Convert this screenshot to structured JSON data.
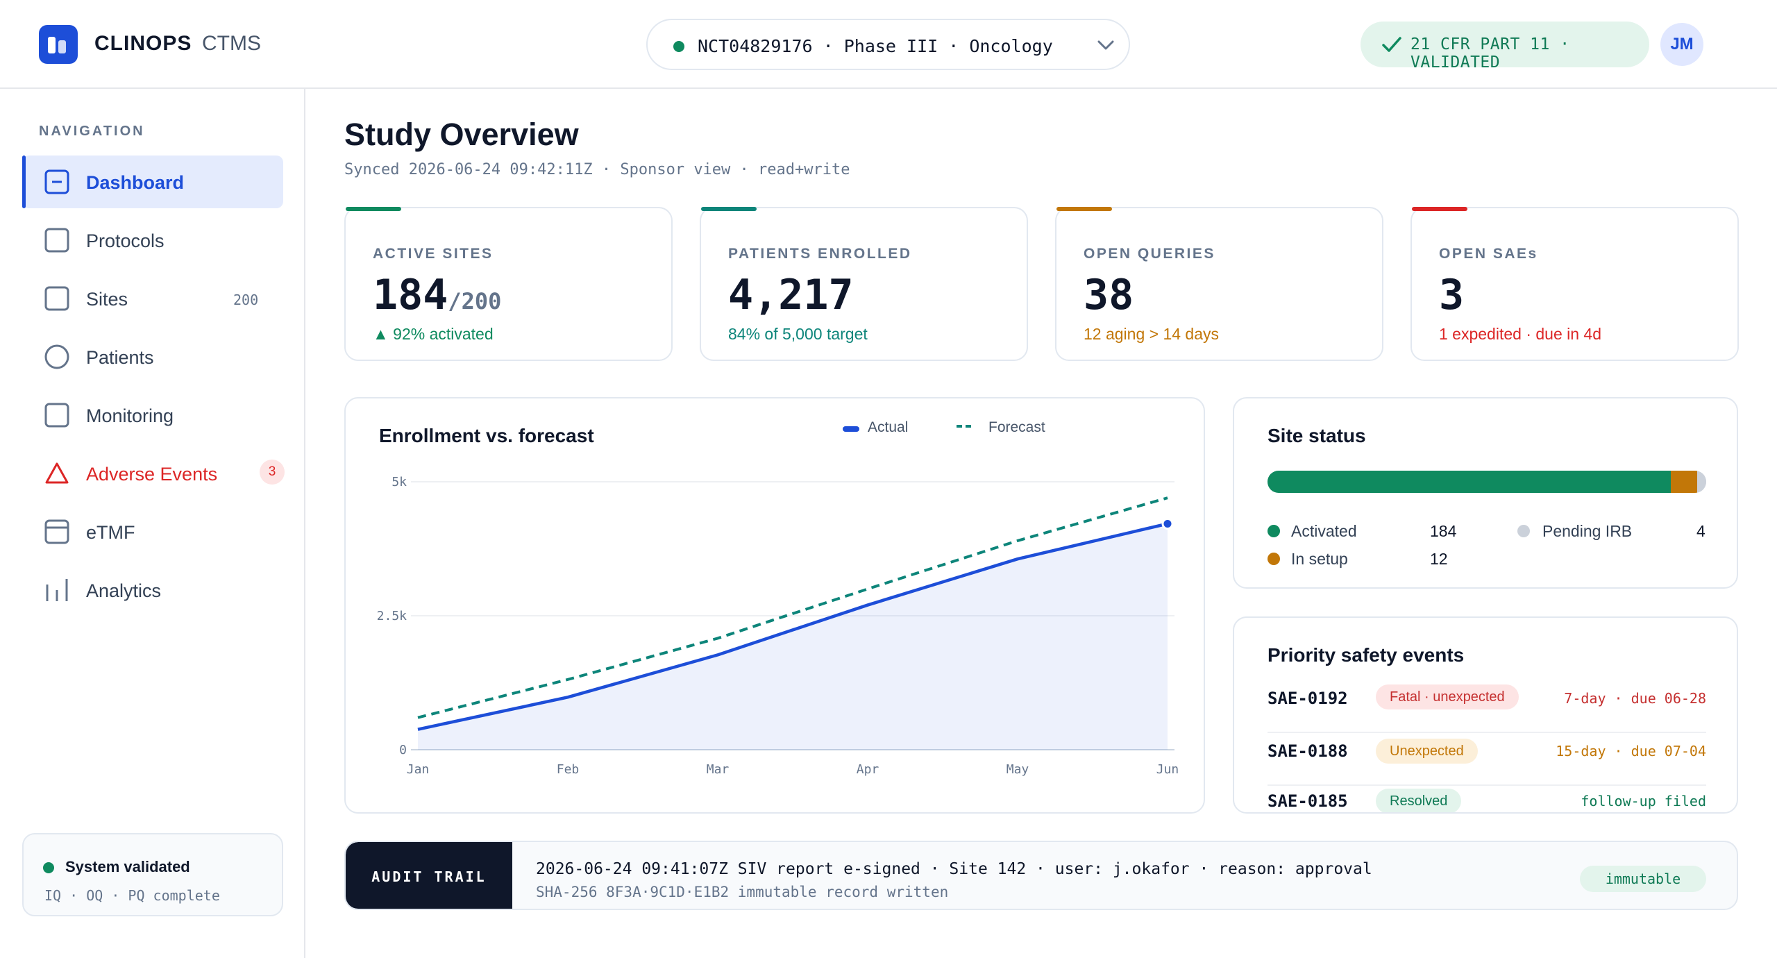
{
  "header": {
    "brand": "CLINOPS",
    "brand_sub": "CTMS",
    "study_selector": "NCT04829176 · Phase III · Oncology",
    "compliance": "21 CFR PART 11 · VALIDATED",
    "user_initials": "JM"
  },
  "sidebar": {
    "heading": "NAVIGATION",
    "items": [
      {
        "label": "Dashboard",
        "icon": "dashboard-icon"
      },
      {
        "label": "Protocols",
        "icon": "protocols-icon"
      },
      {
        "label": "Sites",
        "icon": "sites-icon",
        "count": "200"
      },
      {
        "label": "Patients",
        "icon": "patients-icon"
      },
      {
        "label": "Monitoring",
        "icon": "monitoring-icon"
      },
      {
        "label": "Adverse Events",
        "icon": "warning-triangle-icon",
        "badge": "3"
      },
      {
        "label": "eTMF",
        "icon": "etmf-icon"
      },
      {
        "label": "Analytics",
        "icon": "analytics-icon"
      }
    ],
    "system": {
      "title": "System validated",
      "sub": "IQ · OQ · PQ complete"
    }
  },
  "page": {
    "title": "Study Overview",
    "subtitle": "Synced 2026-06-24 09:42:11Z · Sponsor view · read+write"
  },
  "kpis": [
    {
      "label": "ACTIVE SITES",
      "value": "184",
      "of": "/200",
      "note": "▲ 92% activated",
      "color": "#0f8a5f"
    },
    {
      "label": "PATIENTS ENROLLED",
      "value": "4,217",
      "of": "",
      "note": "84% of 5,000 target",
      "color": "#0d857a"
    },
    {
      "label": "OPEN QUERIES",
      "value": "38",
      "of": "",
      "note": "12 aging > 14 days",
      "color": "#c27708"
    },
    {
      "label": "OPEN SAEs",
      "value": "3",
      "of": "",
      "note": "1 expedited · due in 4d",
      "color": "#dc2626"
    }
  ],
  "enrollment": {
    "title": "Enrollment vs. forecast",
    "legend_actual": "Actual",
    "legend_forecast": "Forecast"
  },
  "chart_data": {
    "type": "line",
    "title": "Enrollment vs. forecast",
    "categories": [
      "Jan",
      "Feb",
      "Mar",
      "Apr",
      "May",
      "Jun"
    ],
    "y_ticks": [
      "5k",
      "2.5k",
      "0"
    ],
    "ylim": [
      0,
      5000
    ],
    "series": [
      {
        "name": "Actual",
        "values": [
          380,
          980,
          1770,
          2700,
          3560,
          4217
        ],
        "color": "#1d4ed8"
      },
      {
        "name": "Forecast",
        "values": [
          600,
          1310,
          2080,
          3000,
          3900,
          4700
        ],
        "color": "#0d857a"
      }
    ]
  },
  "site_status": {
    "title": "Site status",
    "total": 200,
    "items": [
      {
        "label": "Activated",
        "value": 184,
        "color": "#0f8a5f"
      },
      {
        "label": "In setup",
        "value": 12,
        "color": "#c27708"
      },
      {
        "label": "Pending IRB",
        "value": 4,
        "color": "#cbd1da"
      }
    ]
  },
  "safety": {
    "title": "Priority safety events",
    "rows": [
      {
        "id": "SAE-0192",
        "status": "Fatal · unexpected",
        "due": "7-day · due 06-28",
        "pill_bg": "#fde4e4",
        "pill_fg": "#c53030",
        "due_color": "#c53030"
      },
      {
        "id": "SAE-0188",
        "status": "Unexpected",
        "due": "15-day · due 07-04",
        "pill_bg": "#fcefd9",
        "pill_fg": "#c27708",
        "due_color": "#c27708"
      },
      {
        "id": "SAE-0185",
        "status": "Resolved",
        "due": "follow-up filed",
        "pill_bg": "#e3f4ec",
        "pill_fg": "#0f7a55",
        "due_color": "#0f7a55"
      }
    ]
  },
  "audit": {
    "tag": "AUDIT TRAIL",
    "line1": "2026-06-24 09:41:07Z SIV report e-signed · Site 142 · user: j.okafor · reason: approval",
    "line2": "SHA-256 8F3A·9C1D·E1B2 immutable record written",
    "status": "immutable"
  }
}
